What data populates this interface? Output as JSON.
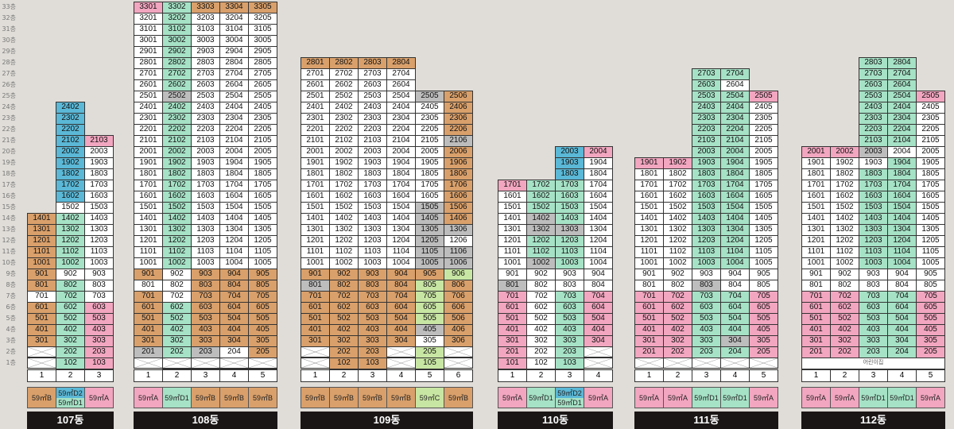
{
  "colors": {
    "A": "#f2a6c0",
    "B": "#d9a06b",
    "C": "#c8e6a3",
    "D1": "#a6e2c6",
    "D2": "#5bb8d6",
    "W": "#ffffff",
    "G": "#bdbdbd"
  },
  "floor_labels": [
    "33층",
    "32층",
    "31층",
    "30층",
    "29층",
    "28층",
    "27층",
    "26층",
    "25층",
    "24층",
    "23층",
    "22층",
    "21층",
    "20층",
    "19층",
    "18층",
    "17층",
    "16층",
    "15층",
    "14층",
    "13층",
    "12층",
    "11층",
    "10층",
    "9층",
    "8층",
    "7층",
    "6층",
    "5층",
    "4층",
    "3층",
    "2층",
    "1층"
  ],
  "buildings": [
    {
      "name": "107동",
      "lines": [
        {
          "num": "1",
          "type": "59㎡B",
          "cells": [
            {
              "f": 14,
              "c": "B"
            },
            {
              "f": 13,
              "c": "B"
            },
            {
              "f": 12,
              "c": "B"
            },
            {
              "f": 11,
              "c": "B"
            },
            {
              "f": 10,
              "c": "B"
            },
            {
              "f": 9,
              "c": "B"
            },
            {
              "f": 8,
              "c": "B"
            },
            {
              "f": 7,
              "c": "W"
            },
            {
              "f": 6,
              "c": "B"
            },
            {
              "f": 5,
              "c": "B"
            },
            {
              "f": 4,
              "c": "B"
            },
            {
              "f": 3,
              "c": "B"
            },
            {
              "f": 2,
              "x": true
            },
            {
              "f": 1,
              "x": true
            }
          ]
        },
        {
          "num": "2",
          "type": "59㎡D2",
          "type2": "59㎡D1",
          "cells": [
            {
              "f": 24,
              "c": "D2"
            },
            {
              "f": 23,
              "c": "D2"
            },
            {
              "f": 22,
              "c": "D2"
            },
            {
              "f": 21,
              "c": "D2"
            },
            {
              "f": 20,
              "c": "D2"
            },
            {
              "f": 19,
              "c": "D2"
            },
            {
              "f": 18,
              "c": "D2"
            },
            {
              "f": 17,
              "c": "D2"
            },
            {
              "f": 16,
              "c": "D2"
            },
            {
              "f": 15,
              "c": "W"
            },
            {
              "f": 14,
              "c": "D1"
            },
            {
              "f": 13,
              "c": "D1"
            },
            {
              "f": 12,
              "c": "D1"
            },
            {
              "f": 11,
              "c": "D1"
            },
            {
              "f": 10,
              "c": "D1"
            },
            {
              "f": 9,
              "c": "W"
            },
            {
              "f": 8,
              "c": "D1"
            },
            {
              "f": 7,
              "c": "D1"
            },
            {
              "f": 6,
              "c": "D1"
            },
            {
              "f": 5,
              "c": "D1"
            },
            {
              "f": 4,
              "c": "D1"
            },
            {
              "f": 3,
              "c": "D1"
            },
            {
              "f": 2,
              "c": "D1"
            },
            {
              "f": 1,
              "c": "D1"
            }
          ]
        },
        {
          "num": "3",
          "type": "59㎡A",
          "cells": [
            {
              "f": 21,
              "c": "A"
            },
            {
              "f": 20,
              "c": "W"
            },
            {
              "f": 19,
              "c": "W"
            },
            {
              "f": 18,
              "c": "W"
            },
            {
              "f": 17,
              "c": "W"
            },
            {
              "f": 16,
              "c": "W"
            },
            {
              "f": 15,
              "c": "W"
            },
            {
              "f": 14,
              "c": "W"
            },
            {
              "f": 13,
              "c": "W"
            },
            {
              "f": 12,
              "c": "W"
            },
            {
              "f": 11,
              "c": "W"
            },
            {
              "f": 10,
              "c": "W"
            },
            {
              "f": 9,
              "c": "W"
            },
            {
              "f": 8,
              "c": "W"
            },
            {
              "f": 7,
              "c": "W"
            },
            {
              "f": 6,
              "c": "A"
            },
            {
              "f": 5,
              "c": "A"
            },
            {
              "f": 4,
              "c": "A"
            },
            {
              "f": 3,
              "c": "A"
            },
            {
              "f": 2,
              "c": "A"
            },
            {
              "f": 1,
              "c": "A"
            }
          ]
        }
      ]
    },
    {
      "name": "108동",
      "lines": [
        {
          "num": "1",
          "type": "59㎡A",
          "top": 33,
          "topColor": "A",
          "colors": {
            "default": "W",
            "9": "B",
            "8": "W",
            "7": "B",
            "6": "B",
            "5": "B",
            "4": "B",
            "3": "B",
            "2": "G"
          },
          "skip": [
            1
          ]
        },
        {
          "num": "2",
          "type": "59㎡D1",
          "top": 33,
          "topColor": "D1",
          "colors": {
            "default": "D1",
            "25": "G",
            "9": "W",
            "8": "W",
            "7": "W"
          }
        },
        {
          "num": "3",
          "type": "59㎡B",
          "top": 33,
          "topColor": "B",
          "colors": {
            "default": "W",
            "9": "B",
            "8": "B",
            "7": "B",
            "6": "B",
            "5": "B",
            "4": "B",
            "3": "B",
            "2": "G"
          }
        },
        {
          "num": "4",
          "type": "59㎡B",
          "top": 33,
          "topColor": "B",
          "colors": {
            "default": "W",
            "9": "B",
            "8": "B",
            "7": "B",
            "6": "B",
            "5": "B",
            "4": "B",
            "3": "B",
            "2": "W"
          }
        },
        {
          "num": "5",
          "type": "59㎡B",
          "top": 33,
          "topColor": "B",
          "colors": {
            "default": "W",
            "9": "B",
            "8": "B",
            "7": "B",
            "6": "B",
            "5": "B",
            "4": "B",
            "3": "B",
            "2": "B"
          }
        }
      ],
      "xFloors": {
        "1": [
          1,
          2,
          3,
          4,
          5
        ]
      }
    },
    {
      "name": "109동",
      "lines": [
        {
          "num": "1",
          "type": "59㎡B",
          "top": 28,
          "topColor": "B",
          "colors": {
            "default": "W",
            "9": "B",
            "8": "G",
            "7": "B",
            "6": "B",
            "5": "B",
            "4": "B",
            "3": "B"
          },
          "x": [
            2,
            1
          ]
        },
        {
          "num": "2",
          "type": "59㎡B",
          "top": 28,
          "topColor": "B",
          "colors": {
            "default": "W",
            "9": "B",
            "8": "B",
            "7": "B",
            "6": "B",
            "5": "B",
            "4": "B",
            "3": "B",
            "2": "B",
            "1": "B"
          }
        },
        {
          "num": "3",
          "type": "59㎡B",
          "top": 28,
          "topColor": "B",
          "colors": {
            "default": "W",
            "9": "B",
            "8": "B",
            "7": "B",
            "6": "B",
            "5": "B",
            "4": "B",
            "3": "B",
            "2": "B",
            "1": "B"
          }
        },
        {
          "num": "4",
          "type": "59㎡B",
          "top": 28,
          "topColor": "B",
          "colors": {
            "default": "W",
            "9": "B",
            "8": "B",
            "7": "B",
            "6": "B",
            "5": "B",
            "4": "B",
            "3": "B"
          },
          "x": [
            2,
            1
          ]
        },
        {
          "num": "5",
          "type": "59㎡C",
          "top": 25,
          "topColor": "G",
          "colors": {
            "default": "W",
            "15": "G",
            "14": "G",
            "13": "G",
            "12": "G",
            "11": "G",
            "10": "G",
            "9": "B",
            "8": "C",
            "7": "C",
            "6": "C",
            "5": "C",
            "4": "G",
            "3": "W",
            "2": "C",
            "1": "C"
          }
        },
        {
          "num": "6",
          "type": "59㎡B",
          "top": 25,
          "topColor": "B",
          "colors": {
            "default": "B",
            "21": "G",
            "13": "G",
            "12": "W",
            "11": "G",
            "10": "G",
            "9": "C",
            "8": "B",
            "7": "B",
            "6": "B",
            "5": "B",
            "4": "B",
            "3": "B"
          },
          "x": [
            2,
            1
          ]
        }
      ]
    },
    {
      "name": "110동",
      "lines": [
        {
          "num": "1",
          "type": "59㎡A",
          "top": 17,
          "topColor": "A",
          "colors": {
            "default": "W",
            "8": "G",
            "7": "A",
            "6": "A",
            "5": "A",
            "4": "A",
            "3": "A",
            "2": "A",
            "1": "A"
          }
        },
        {
          "num": "2",
          "type": "59㎡D1",
          "top": 17,
          "topColor": "D1",
          "colors": {
            "default": "D1",
            "14": "G",
            "13": "G",
            "10": "G",
            "9": "W",
            "8": "W",
            "7": "W",
            "6": "W",
            "5": "W",
            "4": "W",
            "3": "W",
            "2": "W",
            "1": "W"
          }
        },
        {
          "num": "3",
          "type": "59㎡D2",
          "type2": "59㎡D1",
          "top": 20,
          "topColor": "D2",
          "colors": {
            "default": "D1",
            "20": "D2",
            "19": "D2",
            "18": "D2",
            "13": "G",
            "9": "W",
            "8": "W",
            "7": "D1"
          }
        },
        {
          "num": "4",
          "type": "59㎡A",
          "top": 20,
          "topColor": "A",
          "colors": {
            "default": "W",
            "7": "A",
            "6": "A",
            "5": "A",
            "4": "A",
            "3": "A",
            "2": "W",
            "1": "W"
          },
          "x": [
            2,
            1
          ]
        }
      ]
    },
    {
      "name": "111동",
      "lines": [
        {
          "num": "1",
          "type": "59㎡A",
          "top": 19,
          "topColor": "A",
          "colors": {
            "default": "W",
            "7": "A",
            "6": "A",
            "5": "A",
            "4": "A",
            "3": "A",
            "2": "A"
          },
          "x": [
            1
          ]
        },
        {
          "num": "2",
          "type": "59㎡A",
          "top": 19,
          "topColor": "A",
          "colors": {
            "default": "W",
            "7": "A",
            "6": "A",
            "5": "A",
            "4": "A",
            "3": "A",
            "2": "A"
          },
          "x": [
            1
          ]
        },
        {
          "num": "3",
          "type": "59㎡D1",
          "top": 27,
          "topColor": "D1",
          "colors": {
            "default": "D1",
            "20": "D1",
            "9": "W",
            "8": "G"
          },
          "x": [
            1
          ]
        },
        {
          "num": "4",
          "type": "59㎡D1",
          "top": 27,
          "topColor": "D1",
          "colors": {
            "default": "D1",
            "26": "W",
            "9": "W",
            "8": "W",
            "3": "G"
          },
          "x": [
            1
          ]
        },
        {
          "num": "5",
          "type": "59㎡A",
          "top": 25,
          "topColor": "A",
          "colors": {
            "default": "W",
            "7": "A",
            "6": "A",
            "5": "A",
            "4": "A",
            "3": "A",
            "2": "A"
          },
          "x": [
            1
          ]
        }
      ]
    },
    {
      "name": "112동",
      "lines": [
        {
          "num": "1",
          "type": "59㎡A",
          "top": 20,
          "topColor": "A",
          "colors": {
            "default": "W",
            "7": "A",
            "6": "A",
            "5": "A",
            "4": "A",
            "3": "A",
            "2": "A"
          }
        },
        {
          "num": "2",
          "type": "59㎡A",
          "top": 20,
          "topColor": "A",
          "colors": {
            "default": "W",
            "7": "A",
            "6": "A",
            "5": "A",
            "4": "A",
            "3": "A",
            "2": "A"
          }
        },
        {
          "num": "3",
          "type": "59㎡D1",
          "top": 28,
          "topColor": "D1",
          "colors": {
            "default": "D1",
            "20": "G",
            "19": "W",
            "9": "W",
            "8": "W"
          }
        },
        {
          "num": "4",
          "type": "59㎡D1",
          "top": 28,
          "topColor": "D1",
          "colors": {
            "default": "D1",
            "20": "W",
            "9": "W",
            "8": "W"
          }
        },
        {
          "num": "5",
          "type": "59㎡A",
          "top": 25,
          "topColor": "A",
          "colors": {
            "default": "W",
            "7": "A",
            "6": "A",
            "5": "A",
            "4": "A",
            "3": "A",
            "2": "A"
          }
        }
      ],
      "groundNote": "어린이집"
    }
  ]
}
